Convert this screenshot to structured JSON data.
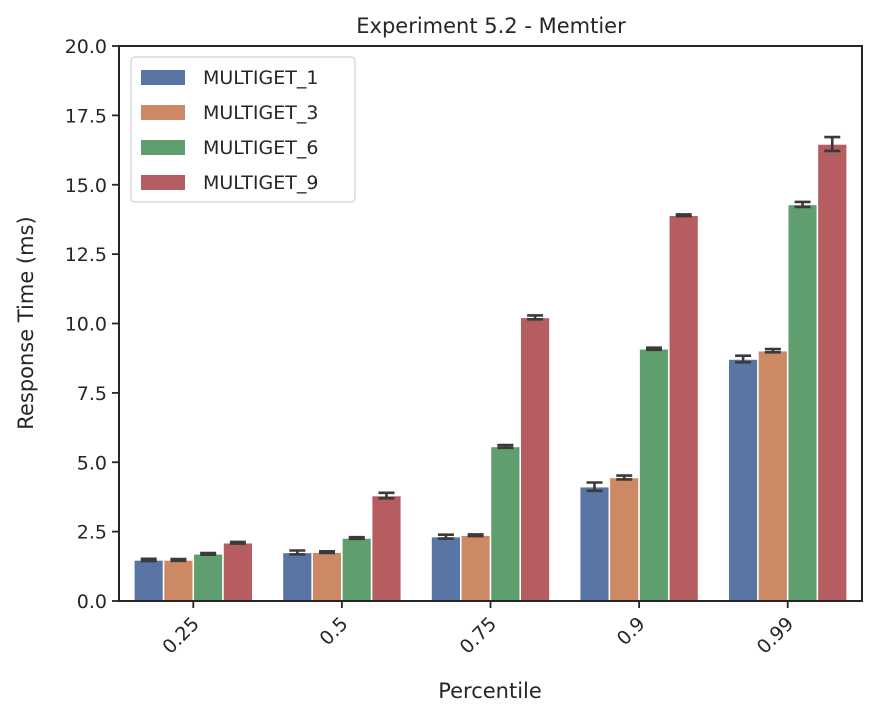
{
  "chart_data": {
    "type": "bar",
    "title": "Experiment 5.2 - Memtier",
    "xlabel": "Percentile",
    "ylabel": "Response Time (ms)",
    "categories": [
      "0.25",
      "0.5",
      "0.75",
      "0.9",
      "0.99"
    ],
    "ylim": [
      0,
      20
    ],
    "yticks": [
      0,
      2.5,
      5,
      7.5,
      10,
      12.5,
      15,
      17.5,
      20
    ],
    "ytick_labels": [
      "0.0",
      "2.5",
      "5.0",
      "7.5",
      "10.0",
      "12.5",
      "15.0",
      "17.5",
      "20.0"
    ],
    "legend_position": "top-left",
    "grid": false,
    "series": [
      {
        "name": "MULTIGET_1",
        "color": "#5875a4",
        "values": [
          1.48,
          1.75,
          2.32,
          4.12,
          8.72
        ],
        "err": [
          0.04,
          0.07,
          0.07,
          0.15,
          0.12
        ]
      },
      {
        "name": "MULTIGET_3",
        "color": "#cc8963",
        "values": [
          1.48,
          1.76,
          2.37,
          4.45,
          9.02
        ],
        "err": [
          0.03,
          0.03,
          0.03,
          0.07,
          0.06
        ]
      },
      {
        "name": "MULTIGET_6",
        "color": "#5f9e6e",
        "values": [
          1.7,
          2.27,
          5.57,
          9.09,
          14.29
        ],
        "err": [
          0.03,
          0.03,
          0.05,
          0.04,
          0.09
        ]
      },
      {
        "name": "MULTIGET_9",
        "color": "#b55d60",
        "values": [
          2.1,
          3.8,
          10.22,
          13.9,
          16.47
        ],
        "err": [
          0.03,
          0.1,
          0.07,
          0.03,
          0.25
        ]
      }
    ]
  }
}
